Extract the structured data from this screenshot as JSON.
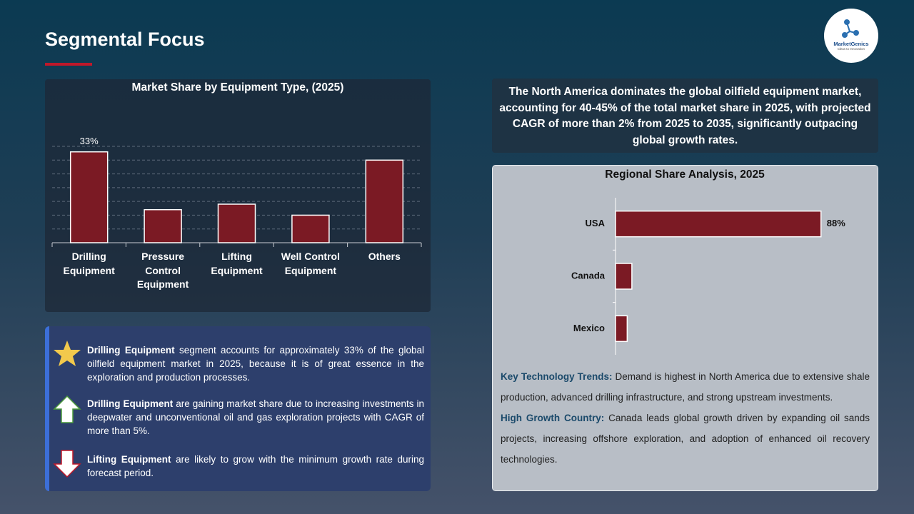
{
  "header": {
    "title": "Segmental Focus"
  },
  "logo": {
    "name": "MarketGenics",
    "tagline": "Ideas to Innovation"
  },
  "summary": "The North America dominates the global oilfield equipment market, accounting for 40-45% of the total market share in 2025, with projected CAGR of more than 2% from 2025 to 2035, significantly outpacing global growth rates.",
  "bullets": [
    {
      "lead": "Drilling Equipment",
      "text": "segment accounts for approximately 33% of the global oilfield equipment market in 2025, because it is of great essence in the exploration and production processes."
    },
    {
      "lead": "Drilling Equipment",
      "text": "are gaining market share due to increasing investments in deepwater and unconventional oil and gas exploration projects with CAGR of more than 5%."
    },
    {
      "lead": "Lifting Equipment",
      "text": "are likely to grow with the minimum growth rate during forecast period."
    }
  ],
  "insights": [
    {
      "lead": "Key Technology Trends:",
      "text": "Demand is highest in North America due to extensive shale production, advanced drilling infrastructure, and strong upstream investments."
    },
    {
      "lead": "High Growth Country:",
      "text": "Canada leads global growth driven by expanding oil sands projects, increasing offshore exploration, and adoption of enhanced oil recovery technologies."
    }
  ],
  "chart_data": [
    {
      "type": "bar",
      "orientation": "vertical",
      "title": "Market Share by Equipment Type, (2025)",
      "categories": [
        "Drilling Equipment",
        "Pressure Control Equipment",
        "Lifting Equipment",
        "Well Control Equipment",
        "Others"
      ],
      "values": [
        33,
        12,
        14,
        10,
        30
      ],
      "value_labels": [
        "33%",
        null,
        null,
        null,
        null
      ],
      "color": "#7b1a24",
      "ylim": [
        0,
        35
      ],
      "yticks": [
        5,
        10,
        15,
        20,
        25,
        30,
        35
      ],
      "grid": true
    },
    {
      "type": "bar",
      "orientation": "horizontal",
      "title": "Regional Share Analysis, 2025",
      "categories": [
        "USA",
        "Canada",
        "Mexico"
      ],
      "values": [
        88,
        7,
        5
      ],
      "value_labels": [
        "88%",
        null,
        null
      ],
      "color": "#7b1a24",
      "xlim": [
        0,
        100
      ],
      "grid": false
    }
  ]
}
